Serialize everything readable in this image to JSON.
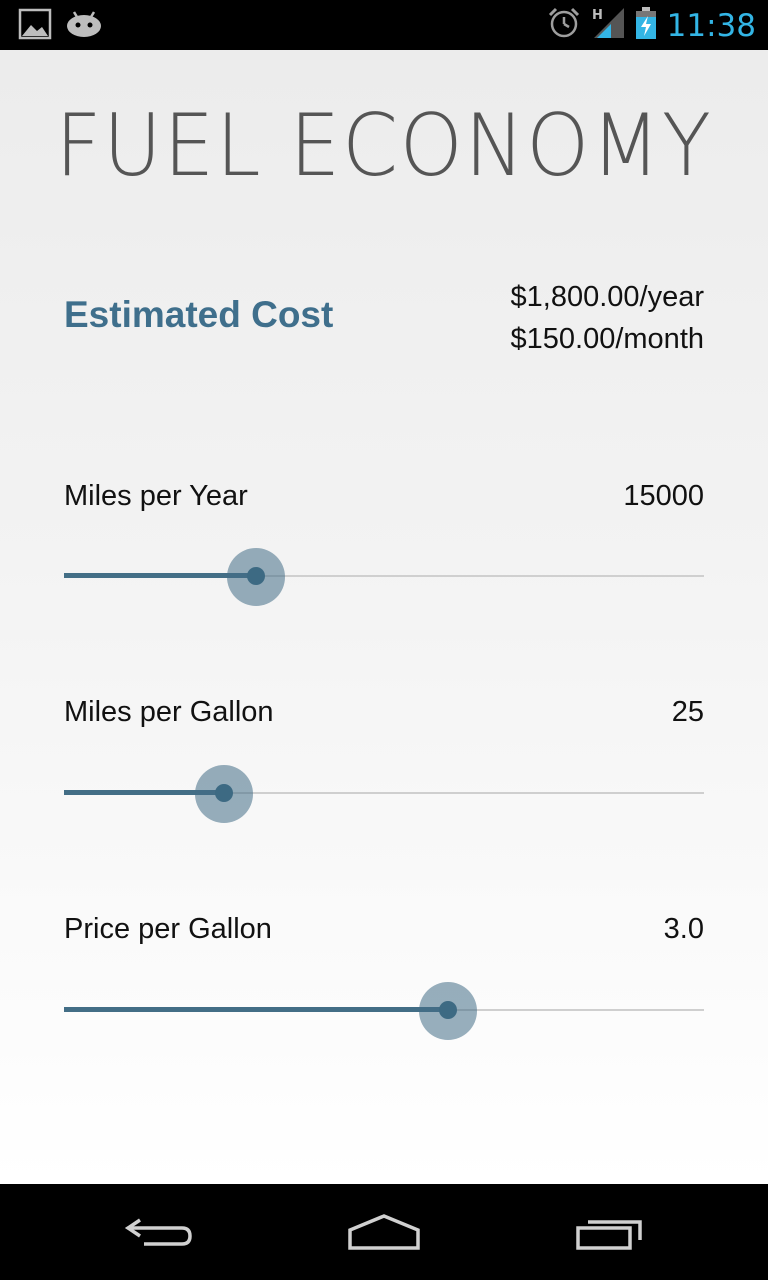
{
  "status_bar": {
    "time": "11:38",
    "left_icons": [
      "gallery-icon",
      "android-debug-icon"
    ],
    "right_icons": [
      "alarm-icon",
      "signal-h-icon",
      "battery-charging-icon"
    ],
    "time_color": "#33b5e5"
  },
  "app": {
    "title": "FUEL ECONOMY",
    "estimated_cost": {
      "label": "Estimated Cost",
      "per_year": "$1,800.00/year",
      "per_month": "$150.00/month"
    },
    "sliders": [
      {
        "label": "Miles per Year",
        "value": "15000",
        "fraction": 0.3
      },
      {
        "label": "Miles per Gallon",
        "value": "25",
        "fraction": 0.25
      },
      {
        "label": "Price per Gallon",
        "value": "3.0",
        "fraction": 0.6
      }
    ],
    "accent_color": "#3f6f8c"
  },
  "nav_bar": {
    "buttons": [
      "back-icon",
      "home-icon",
      "recent-apps-icon"
    ]
  }
}
